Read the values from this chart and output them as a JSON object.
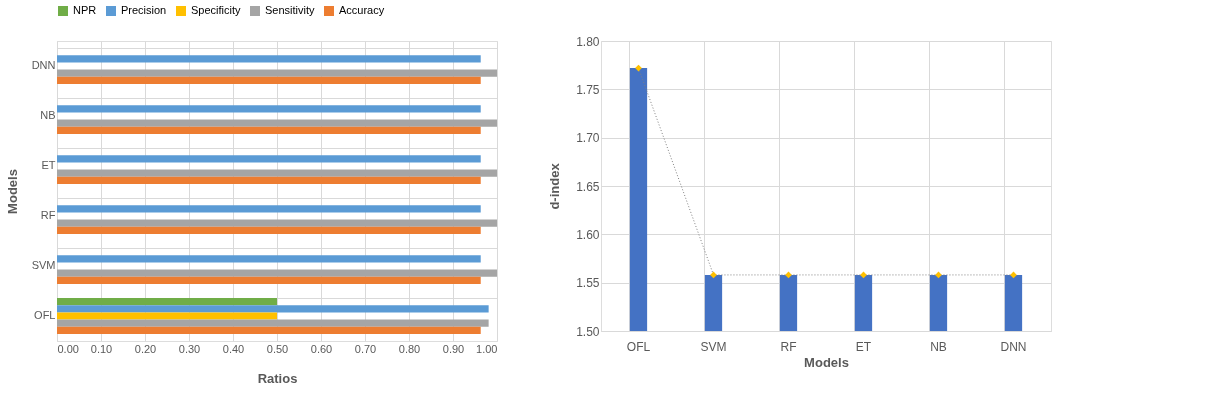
{
  "chart_data": [
    {
      "type": "bar",
      "orientation": "horizontal",
      "xlabel": "Ratios",
      "ylabel": "Models",
      "categories": [
        "DNN",
        "NB",
        "ET",
        "RF",
        "SVM",
        "OFL"
      ],
      "series": [
        {
          "name": "NPR",
          "color": "#70ad47",
          "values": [
            0,
            0,
            0,
            0,
            0,
            0.5
          ]
        },
        {
          "name": "Precision",
          "color": "#5b9bd5",
          "values": [
            0.963,
            0.963,
            0.963,
            0.963,
            0.963,
            0.981
          ]
        },
        {
          "name": "Specificity",
          "color": "#ffc000",
          "values": [
            0,
            0,
            0,
            0,
            0,
            0.5
          ]
        },
        {
          "name": "Sensitivity",
          "color": "#a5a5a5",
          "values": [
            1.0,
            1.0,
            1.0,
            1.0,
            1.0,
            0.981
          ]
        },
        {
          "name": "Accuracy",
          "color": "#ed7d31",
          "values": [
            0.963,
            0.963,
            0.963,
            0.963,
            0.963,
            0.963
          ]
        }
      ],
      "xlim": [
        0,
        1
      ],
      "xticks": [
        {
          "value": 0,
          "label": "0.00"
        },
        {
          "value": 0.1,
          "label": "0.10"
        },
        {
          "value": 0.2,
          "label": "0.20"
        },
        {
          "value": 0.3,
          "label": "0.30"
        },
        {
          "value": 0.4,
          "label": "0.40"
        },
        {
          "value": 0.5,
          "label": "0.50"
        },
        {
          "value": 0.6,
          "label": "0.60"
        },
        {
          "value": 0.7,
          "label": "0.70"
        },
        {
          "value": 0.8,
          "label": "0.80"
        },
        {
          "value": 0.9,
          "label": "0.90"
        },
        {
          "value": 1,
          "label": "1.00"
        }
      ],
      "grid": true,
      "legend": "top"
    },
    {
      "type": "bar",
      "xlabel": "Models",
      "ylabel": "d-index",
      "categories": [
        "OFL",
        "SVM",
        "RF",
        "ET",
        "NB",
        "DNN"
      ],
      "series": [
        {
          "type": "bar",
          "color": "#4472c4",
          "values": [
            1.772,
            1.558,
            1.558,
            1.558,
            1.558,
            1.558
          ]
        },
        {
          "type": "line",
          "color": "#808080",
          "colors": [
            "#ffc000",
            "#ffc000",
            "#ffc000",
            "#ffc000",
            "#ffc000",
            "#ffc000"
          ],
          "marker": "diamond",
          "line_style": "dotted",
          "values": [
            1.772,
            1.558,
            1.558,
            1.558,
            1.558,
            1.558
          ]
        }
      ],
      "ylim": [
        1.5,
        1.8
      ],
      "yticks": [
        {
          "value": 1.5,
          "label": "1.50"
        },
        {
          "value": 1.55,
          "label": "1.55"
        },
        {
          "value": 1.6,
          "label": "1.60"
        },
        {
          "value": 1.65,
          "label": "1.65"
        },
        {
          "value": 1.7,
          "label": "1.70"
        },
        {
          "value": 1.75,
          "label": "1.75"
        },
        {
          "value": 1.8,
          "label": "1.80"
        }
      ],
      "grid": true,
      "legend": false
    }
  ]
}
